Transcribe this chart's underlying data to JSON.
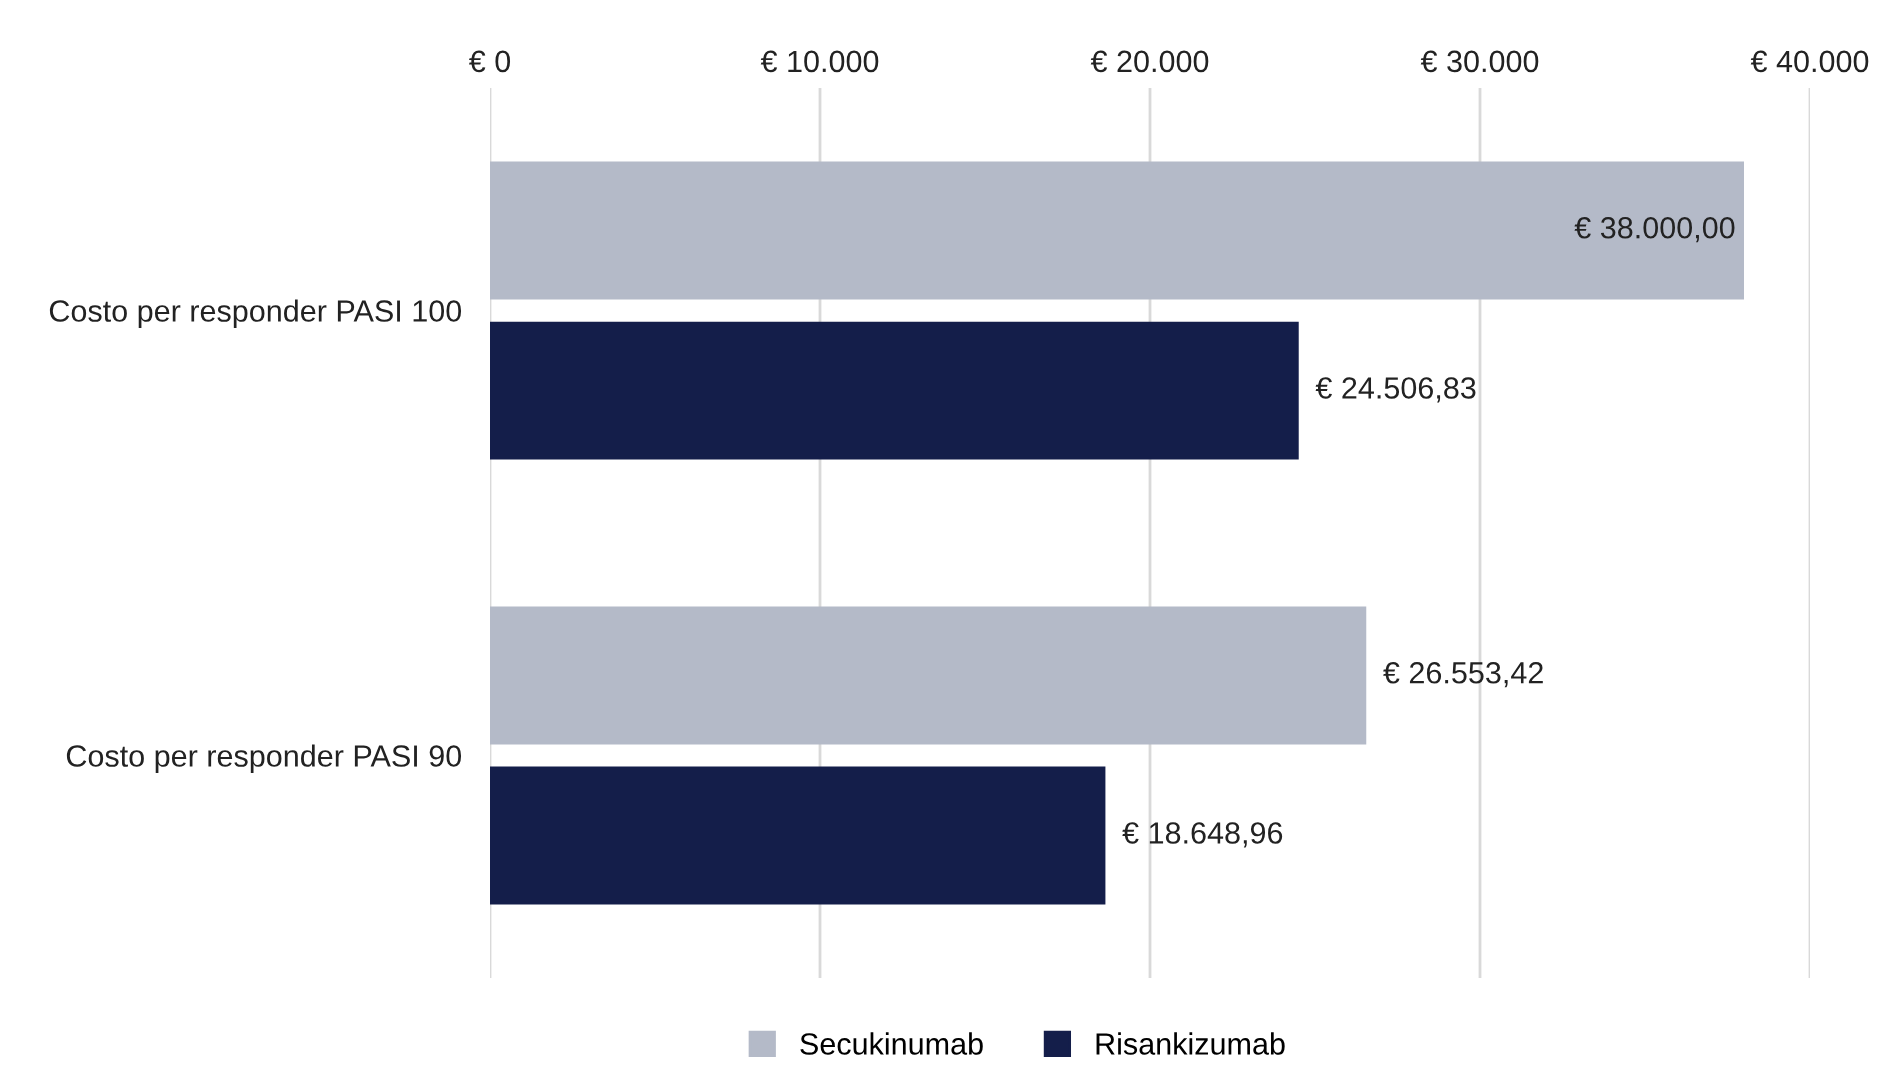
{
  "chart_data": {
    "type": "bar",
    "orientation": "horizontal",
    "categories": [
      "Costo per responder PASI 100",
      "Costo per responder PASI 90"
    ],
    "series": [
      {
        "name": "Secukinumab",
        "color": "#b4bac8",
        "values": [
          38000.0,
          26553.42
        ],
        "value_labels": [
          "€ 38.000,00",
          "€ 26.553,42"
        ]
      },
      {
        "name": "Risankizumab",
        "color": "#141e4a",
        "values": [
          24506.83,
          18648.96
        ],
        "value_labels": [
          "€ 24.506,83",
          "€ 18.648,96"
        ]
      }
    ],
    "xlim": [
      0,
      40000
    ],
    "xticks": [
      {
        "value": 0,
        "label": "€ 0"
      },
      {
        "value": 10000,
        "label": "€ 10.000"
      },
      {
        "value": 20000,
        "label": "€ 20.000"
      },
      {
        "value": 30000,
        "label": "€ 30.000"
      },
      {
        "value": 40000,
        "label": "€ 40.000"
      }
    ],
    "grid": "x",
    "legend": "bottom"
  }
}
